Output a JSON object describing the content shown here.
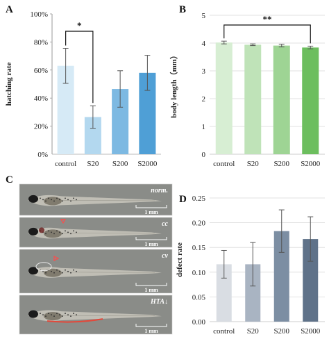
{
  "chart_data": [
    {
      "panel": "A",
      "type": "bar",
      "categories": [
        "control",
        "S20",
        "S200",
        "S2000"
      ],
      "values": [
        63,
        26.5,
        46.5,
        58
      ],
      "errors": [
        12.5,
        8,
        13,
        12.5
      ],
      "ylabel": "hatching rate",
      "ylim": [
        0,
        100
      ],
      "yticks": [
        "0%",
        "20%",
        "40%",
        "60%",
        "80%",
        "100%"
      ],
      "colors": [
        "#d6eaf6",
        "#b3d8ef",
        "#7db9e2",
        "#4f9fd6"
      ],
      "significance": {
        "from": 0,
        "to": 1,
        "label": "*"
      }
    },
    {
      "panel": "B",
      "type": "bar",
      "categories": [
        "control",
        "S20",
        "S200",
        "S2000"
      ],
      "values": [
        4.02,
        3.94,
        3.91,
        3.84
      ],
      "errors": [
        0.05,
        0.03,
        0.05,
        0.05
      ],
      "ylabel": "body length（mm）",
      "ylim": [
        0,
        5
      ],
      "yticks": [
        "0",
        "1",
        "2",
        "3",
        "4",
        "5"
      ],
      "colors": [
        "#d7eed3",
        "#bfe3b8",
        "#9ed494",
        "#6cbe5e"
      ],
      "significance": {
        "from": 0,
        "to": 3,
        "label": "**"
      }
    },
    {
      "panel": "D",
      "type": "bar",
      "categories": [
        "control",
        "S20",
        "S200",
        "S2000"
      ],
      "values": [
        0.116,
        0.116,
        0.183,
        0.167
      ],
      "errors": [
        0.028,
        0.044,
        0.043,
        0.045
      ],
      "ylabel": "defect rate",
      "ylim": [
        0,
        0.25
      ],
      "yticks": [
        "0.00",
        "0.05",
        "0.10",
        "0.15",
        "0.20",
        "0.25"
      ],
      "colors": [
        "#d9dde3",
        "#a9b4c2",
        "#7c8ea3",
        "#5f7289"
      ]
    }
  ],
  "panel_c": {
    "letter": "C",
    "images": [
      {
        "label": "norm.",
        "scale": "1 mm"
      },
      {
        "label": "cc",
        "scale": "1 mm"
      },
      {
        "label": "cv",
        "scale": "1 mm"
      },
      {
        "label": "HTA↓",
        "scale": "1 mm"
      }
    ]
  }
}
